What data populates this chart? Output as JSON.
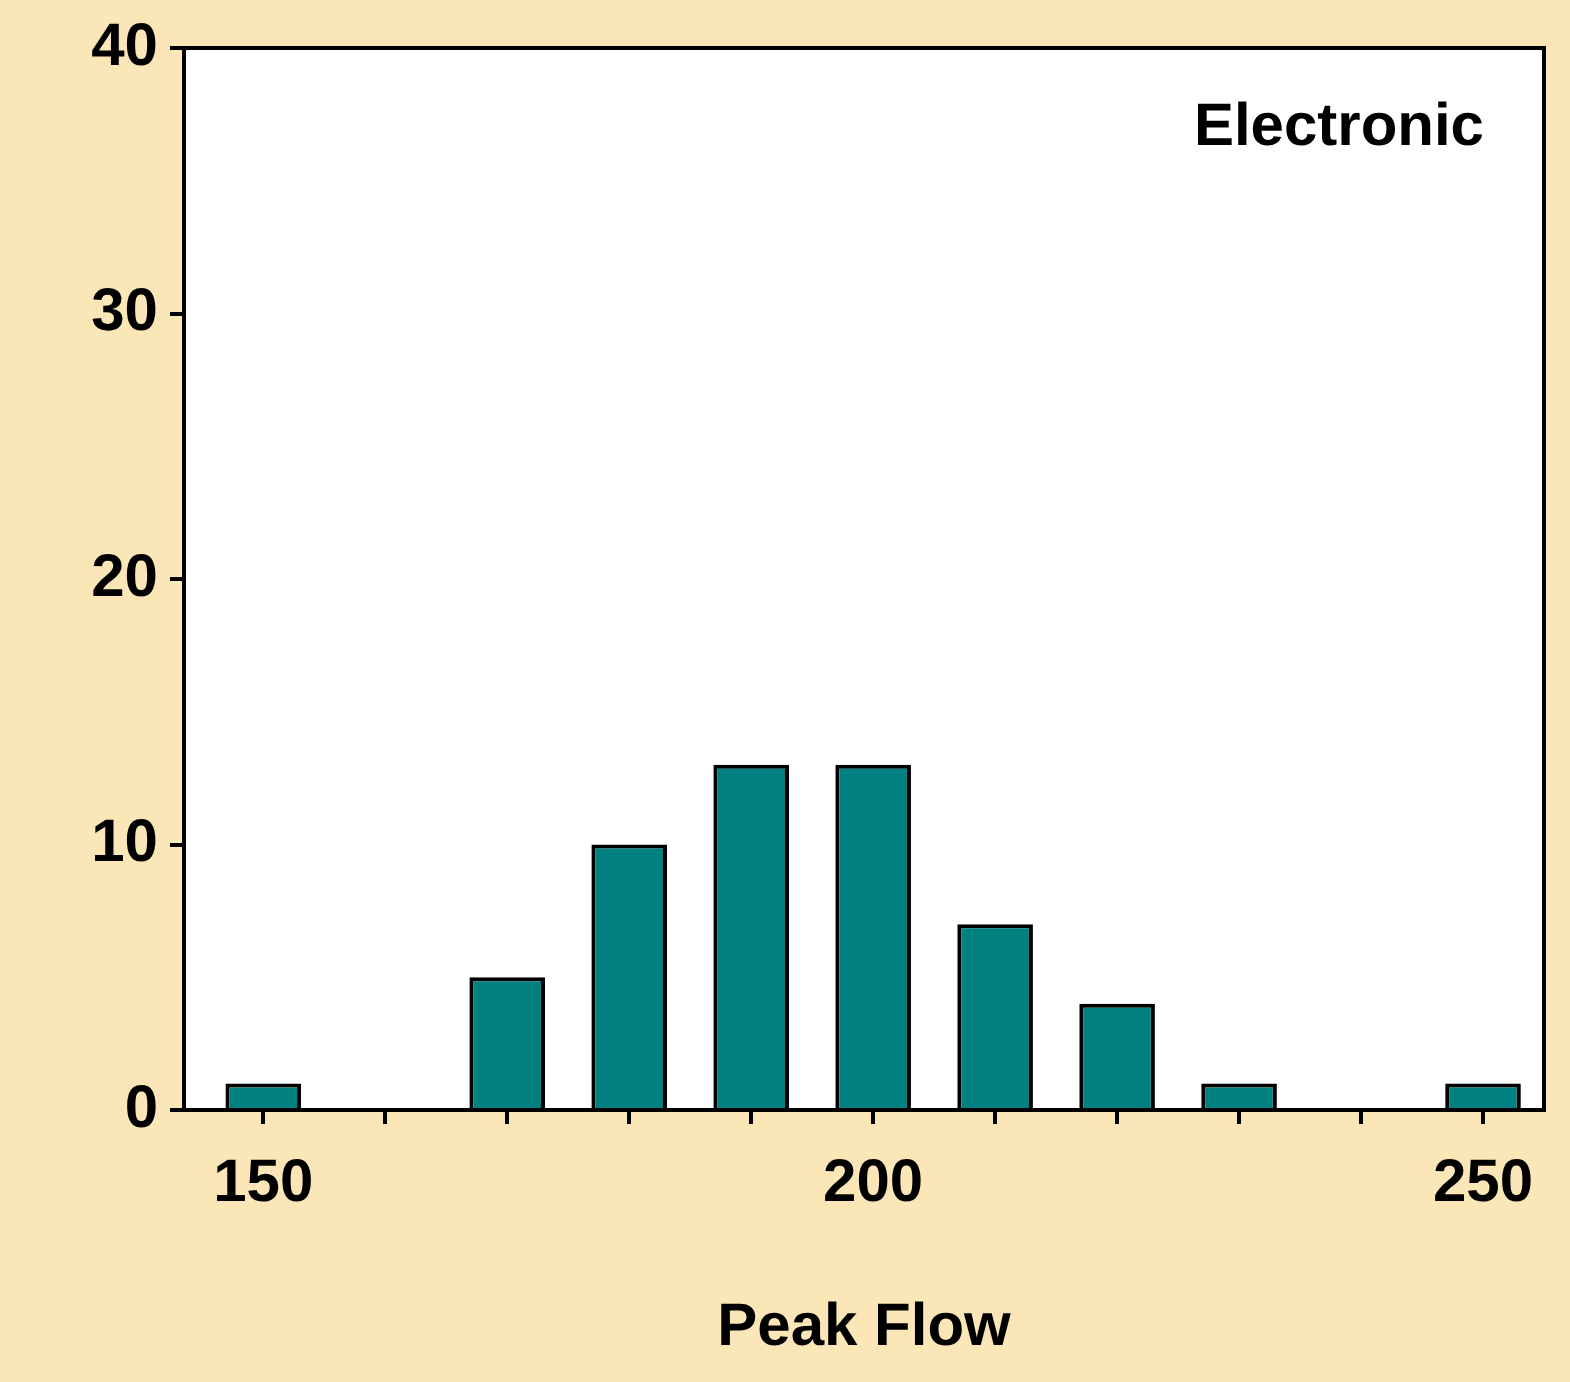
{
  "chart_data": {
    "type": "bar",
    "title": "Electronic",
    "xlabel": "Peak Flow",
    "x": [
      150,
      160,
      170,
      180,
      190,
      200,
      210,
      220,
      230,
      240,
      250
    ],
    "values": [
      1,
      0,
      5,
      10,
      13,
      13,
      7,
      4,
      1,
      0,
      1
    ],
    "color": "#008080",
    "xlim": [
      143.5,
      255
    ],
    "xticks": [
      150,
      {
        "value": 160,
        "label": null
      },
      {
        "value": 170,
        "label": null
      },
      {
        "value": 180,
        "label": null
      },
      {
        "value": 190,
        "label": null
      },
      200,
      {
        "value": 210,
        "label": null
      },
      {
        "value": 220,
        "label": null
      },
      {
        "value": 230,
        "label": null
      },
      {
        "value": 240,
        "label": null
      },
      250
    ],
    "ylim": [
      0,
      40
    ],
    "yticks": [
      0,
      10,
      20,
      30,
      40
    ],
    "grid": false,
    "legend": false
  }
}
